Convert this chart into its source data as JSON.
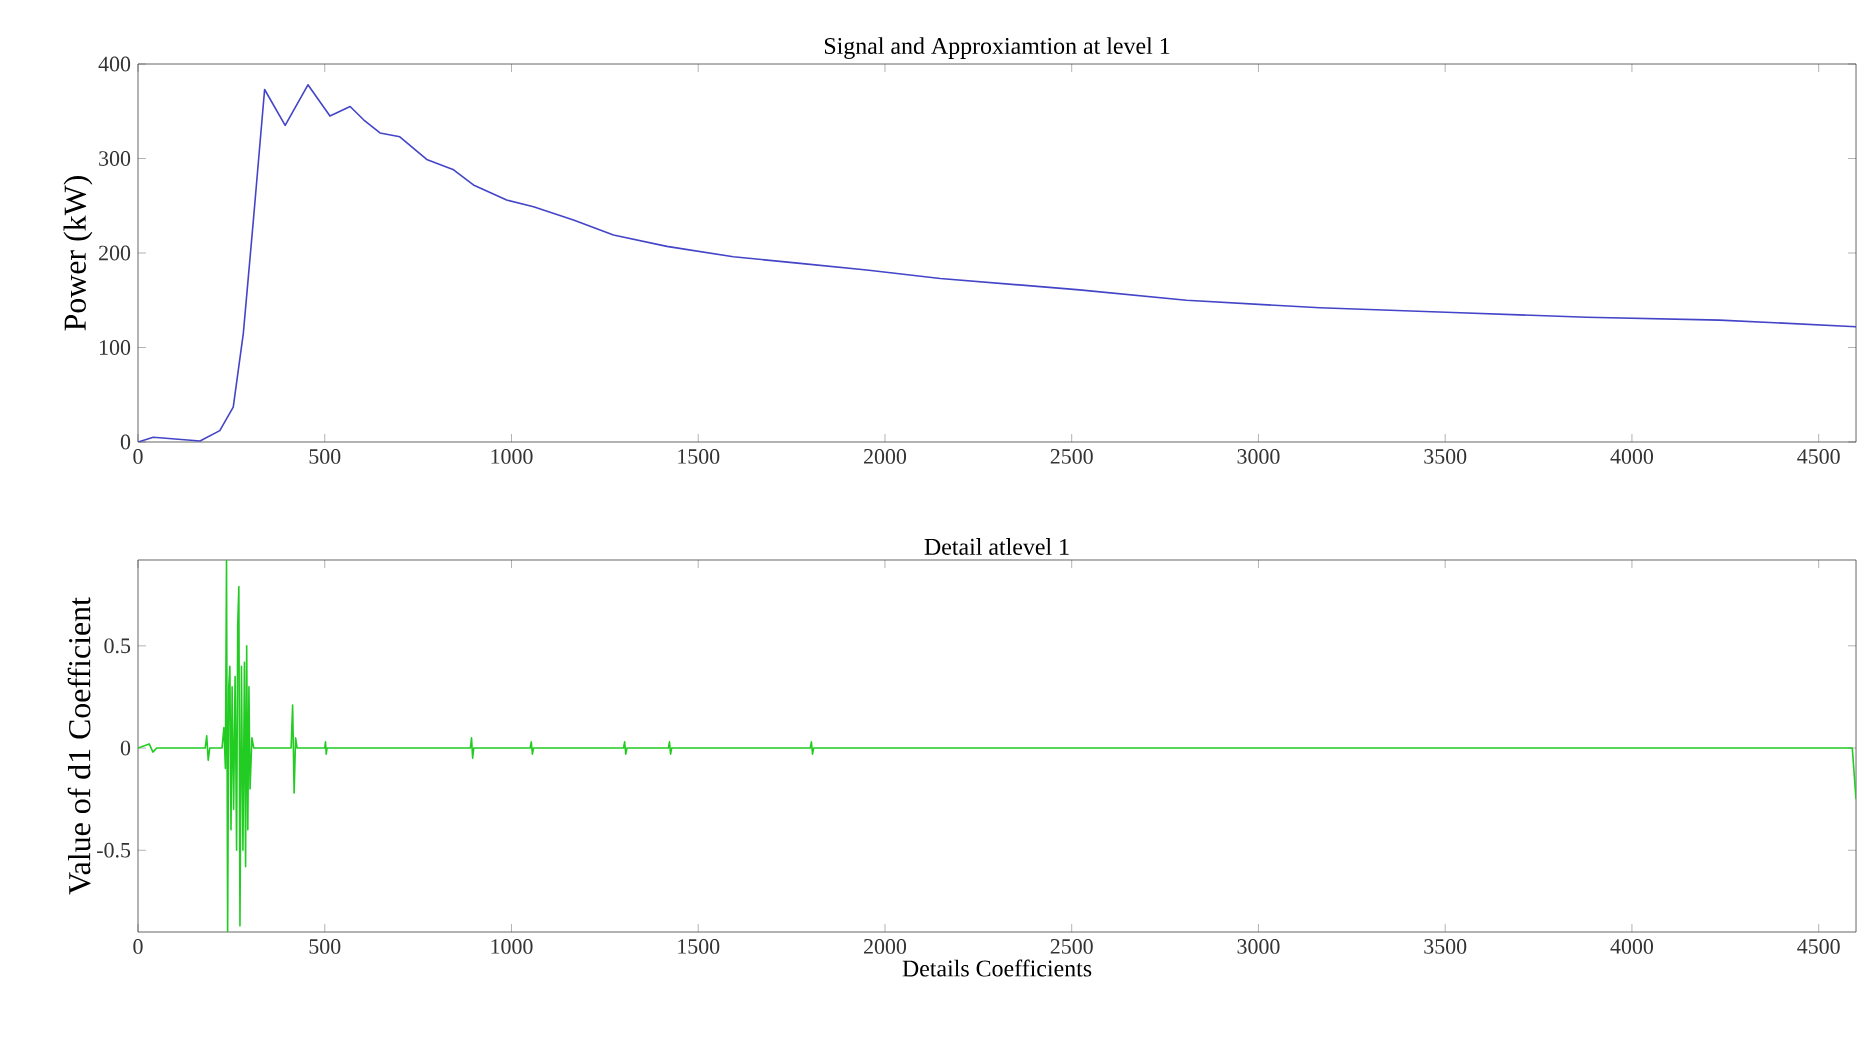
{
  "chart_data": [
    {
      "type": "line",
      "title": "Signal and Approxiamtion at level 1",
      "ylabel": "Power (kW)",
      "xlim": [
        0,
        4600
      ],
      "ylim": [
        0,
        400
      ],
      "xticks": [
        0,
        500,
        1000,
        1500,
        2000,
        2500,
        3000,
        3500,
        4000,
        4500
      ],
      "yticks": [
        0,
        100,
        200,
        300,
        400
      ],
      "grid": false,
      "marker": "none",
      "line_style": "solid",
      "x": [
        0,
        41,
        166,
        219,
        255,
        282,
        309,
        339,
        394,
        455,
        514,
        568,
        604,
        648,
        701,
        773,
        845,
        898,
        987,
        1059,
        1166,
        1273,
        1416,
        1594,
        1773,
        1951,
        2148,
        2521,
        2807,
        3164,
        3521,
        3878,
        4235,
        4600
      ],
      "series": [
        {
          "color": "#4444c8",
          "values": [
            0,
            5,
            1,
            12,
            37,
            115,
            235,
            373,
            335,
            378,
            345,
            355,
            341,
            327,
            323,
            299,
            288,
            272,
            256,
            249,
            235,
            219,
            207,
            196,
            189,
            182,
            173,
            161,
            150,
            142,
            137,
            132,
            129,
            122
          ]
        }
      ]
    },
    {
      "type": "line",
      "title": "Detail atlevel 1",
      "xlabel": "Details Coefficients",
      "ylabel": "Value of d1 Coefficient",
      "xlim": [
        0,
        4600
      ],
      "ylim": [
        -0.9,
        0.92
      ],
      "xticks": [
        0,
        500,
        1000,
        1500,
        2000,
        2500,
        3000,
        3500,
        4000,
        4500
      ],
      "yticks": [
        -0.5,
        0,
        0.5
      ],
      "grid": false,
      "marker": "none",
      "line_style": "solid",
      "x": [
        0,
        30,
        40,
        50,
        180,
        184,
        188,
        192,
        225,
        230,
        234,
        237,
        240,
        243,
        246,
        249,
        252,
        256,
        260,
        264,
        267,
        270,
        273,
        277,
        281,
        285,
        288,
        291,
        294,
        297,
        300,
        305,
        310,
        410,
        414,
        418,
        422,
        426,
        500,
        502,
        504,
        506,
        890,
        893,
        896,
        899,
        1050,
        1053,
        1056,
        1059,
        1300,
        1303,
        1306,
        1309,
        1420,
        1423,
        1426,
        1429,
        1800,
        1803,
        1806,
        1809,
        4590,
        4600
      ],
      "series": [
        {
          "color": "#22cc22",
          "values": [
            0,
            0.02,
            -0.02,
            0,
            0,
            0.06,
            -0.06,
            0,
            0,
            0.1,
            -0.1,
            0.92,
            -0.9,
            0.3,
            0.4,
            -0.4,
            0.3,
            -0.3,
            0.35,
            -0.5,
            0.6,
            0.79,
            -0.87,
            0.4,
            -0.5,
            0.42,
            -0.58,
            0.5,
            -0.4,
            0.3,
            -0.2,
            0.05,
            0,
            0,
            0.21,
            -0.22,
            0.05,
            0,
            0,
            0.03,
            -0.03,
            0,
            0,
            0.05,
            -0.05,
            0,
            0,
            0.03,
            -0.03,
            0,
            0,
            0.03,
            -0.03,
            0,
            0,
            0.03,
            -0.03,
            0,
            0,
            0.03,
            -0.03,
            0,
            0,
            -0.25
          ]
        }
      ]
    }
  ]
}
